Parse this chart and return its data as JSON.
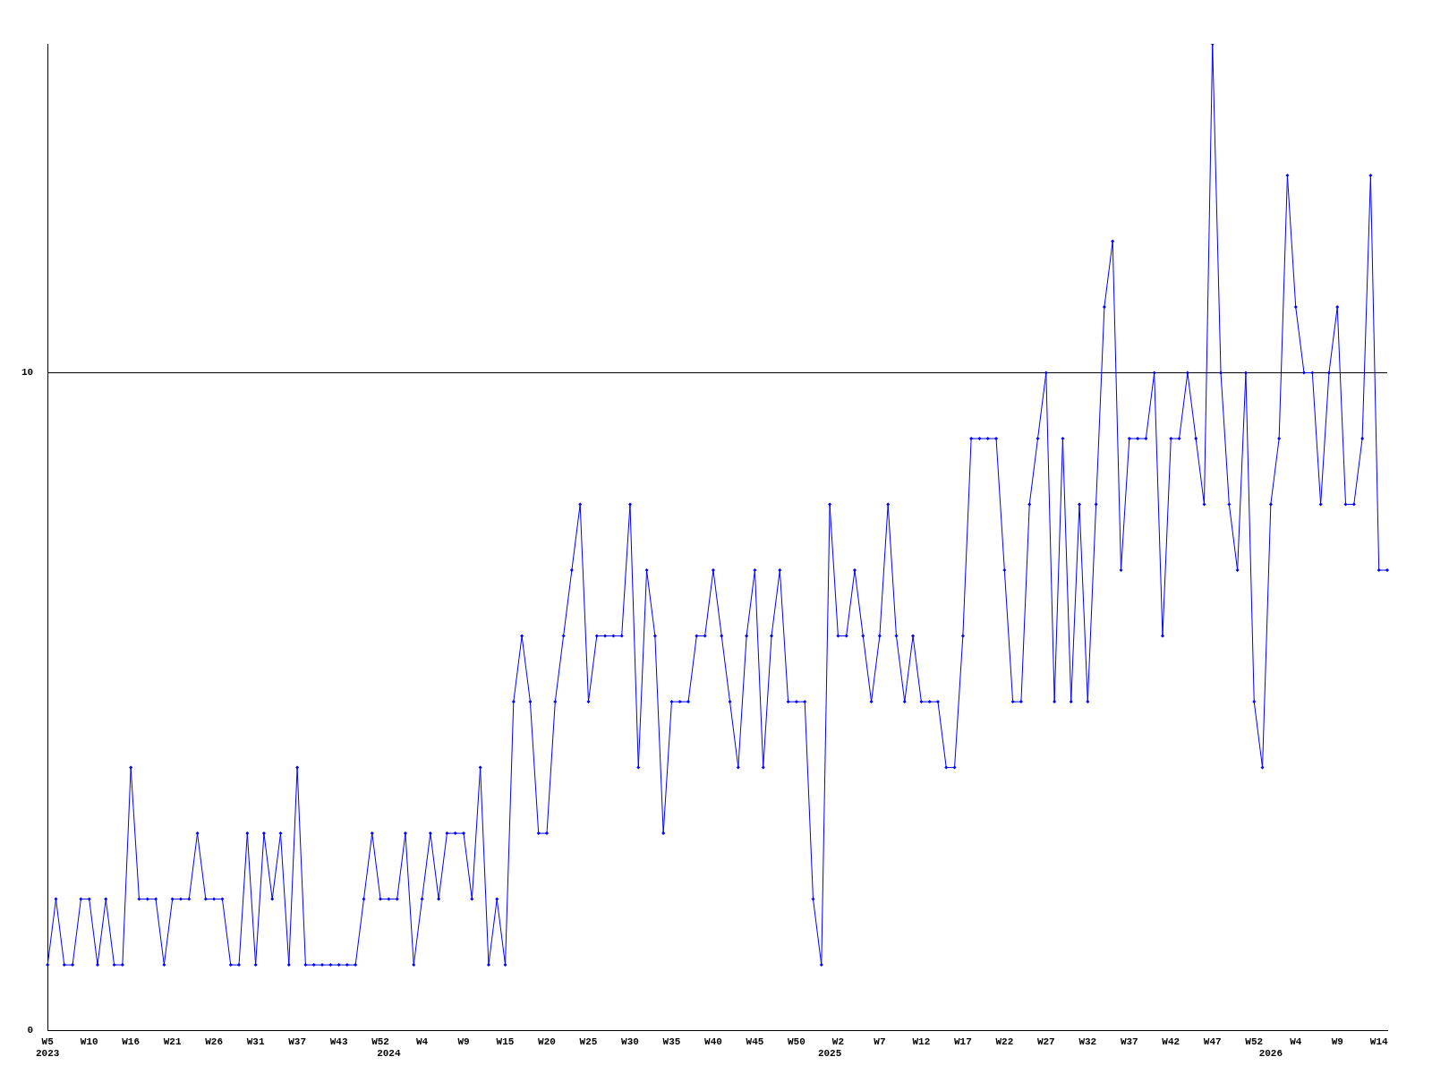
{
  "chart_data": {
    "type": "line",
    "categories": [
      "W5\n2023",
      null,
      null,
      null,
      null,
      "W10",
      null,
      null,
      null,
      null,
      "W16",
      null,
      null,
      null,
      null,
      "W21",
      null,
      null,
      null,
      null,
      "W26",
      null,
      null,
      null,
      null,
      "W31",
      null,
      null,
      null,
      null,
      "W37",
      null,
      null,
      null,
      null,
      "W43",
      null,
      null,
      null,
      null,
      "W52",
      "\n2024",
      null,
      null,
      null,
      "W4",
      null,
      null,
      null,
      null,
      "W9",
      null,
      null,
      null,
      null,
      "W15",
      null,
      null,
      null,
      null,
      "W20",
      null,
      null,
      null,
      null,
      "W25",
      null,
      null,
      null,
      null,
      "W30",
      null,
      null,
      null,
      null,
      "W35",
      null,
      null,
      null,
      null,
      "W40",
      null,
      null,
      null,
      null,
      "W45",
      null,
      null,
      null,
      null,
      "W50",
      null,
      null,
      null,
      "\n2025",
      "W2",
      null,
      null,
      null,
      null,
      "W7",
      null,
      null,
      null,
      null,
      "W12",
      null,
      null,
      null,
      null,
      "W17",
      null,
      null,
      null,
      null,
      "W22",
      null,
      null,
      null,
      null,
      "W27",
      null,
      null,
      null,
      null,
      "W32",
      null,
      null,
      null,
      null,
      "W37",
      null,
      null,
      null,
      null,
      "W42",
      null,
      null,
      null,
      null,
      "W47",
      null,
      null,
      null,
      null,
      "W52",
      null,
      "\n2026",
      null,
      null,
      "W4",
      null,
      null,
      null,
      null,
      "W9",
      null,
      null,
      null,
      null,
      "W14",
      null
    ],
    "series": [
      {
        "color": "#0000ff",
        "values": [
          1,
          2,
          1,
          1,
          2,
          2,
          1,
          2,
          1,
          1,
          4,
          2,
          2,
          2,
          1,
          2,
          2,
          2,
          3,
          2,
          2,
          2,
          1,
          1,
          3,
          1,
          3,
          2,
          3,
          1,
          4,
          1,
          1,
          1,
          1,
          1,
          1,
          1,
          2,
          3,
          2,
          2,
          2,
          3,
          1,
          2,
          3,
          2,
          3,
          3,
          3,
          2,
          4,
          1,
          2,
          1,
          5,
          6,
          5,
          3,
          3,
          5,
          6,
          7,
          8,
          5,
          6,
          6,
          6,
          6,
          8,
          4,
          7,
          6,
          3,
          5,
          5,
          5,
          6,
          6,
          7,
          6,
          5,
          4,
          6,
          7,
          4,
          6,
          7,
          5,
          5,
          5,
          2,
          1,
          8,
          6,
          6,
          7,
          6,
          5,
          6,
          8,
          6,
          5,
          6,
          5,
          5,
          5,
          4,
          4,
          6,
          9,
          9,
          9,
          9,
          7,
          5,
          5,
          8,
          9,
          10,
          5,
          9,
          5,
          8,
          5,
          8,
          11,
          12,
          7,
          9,
          9,
          9,
          10,
          6,
          9,
          9,
          10,
          9,
          8,
          15,
          10,
          8,
          7,
          10,
          5,
          4,
          8,
          9,
          13,
          11,
          10,
          10,
          8,
          10,
          11,
          8,
          8,
          9,
          13,
          7,
          7
        ]
      }
    ],
    "ylim": [
      0,
      15
    ],
    "yticks": [
      0,
      10
    ],
    "grid": "y",
    "marker": "diamond",
    "line_style": "solid"
  }
}
